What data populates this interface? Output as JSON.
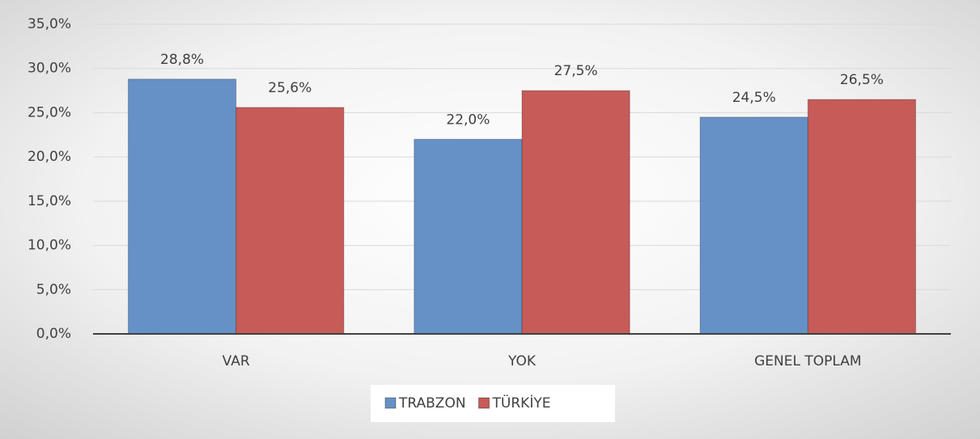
{
  "chart_data": {
    "type": "bar",
    "categories": [
      "VAR",
      "YOK",
      "GENEL TOPLAM"
    ],
    "series": [
      {
        "name": "TRABZON",
        "color": "#6591c7",
        "values": [
          28.8,
          22.0,
          24.5
        ],
        "value_labels": [
          "28,8%",
          "22,0%",
          "24,5%"
        ]
      },
      {
        "name": "TÜRKİYE",
        "color": "#c65b58",
        "values": [
          25.6,
          27.5,
          26.5
        ],
        "value_labels": [
          "25,6%",
          "27,5%",
          "26,5%"
        ]
      }
    ],
    "ylim": [
      0,
      35
    ],
    "yticks": [
      {
        "value": 0,
        "label": "0,0%"
      },
      {
        "value": 5,
        "label": "5,0%"
      },
      {
        "value": 10,
        "label": "10,0%"
      },
      {
        "value": 15,
        "label": "15,0%"
      },
      {
        "value": 20,
        "label": "20,0%"
      },
      {
        "value": 25,
        "label": "25,0%"
      },
      {
        "value": 30,
        "label": "30,0%"
      },
      {
        "value": 35,
        "label": "35,0%"
      }
    ],
    "grid": true,
    "legend": "bottom"
  }
}
